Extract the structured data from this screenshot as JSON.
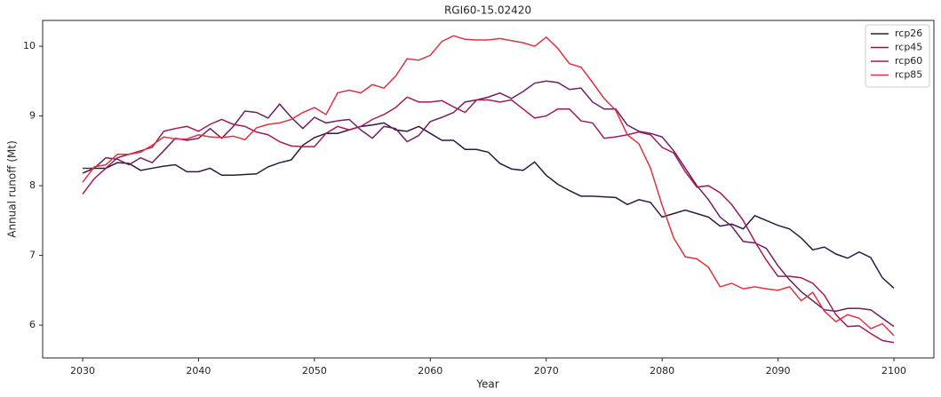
{
  "chart_data": {
    "type": "line",
    "title": "RGI60-15.02420",
    "xlabel": "Year",
    "ylabel": "Annual runoff (Mt)",
    "x": [
      2030,
      2031,
      2032,
      2033,
      2034,
      2035,
      2036,
      2037,
      2038,
      2039,
      2040,
      2041,
      2042,
      2043,
      2044,
      2045,
      2046,
      2047,
      2048,
      2049,
      2050,
      2051,
      2052,
      2053,
      2054,
      2055,
      2056,
      2057,
      2058,
      2059,
      2060,
      2061,
      2062,
      2063,
      2064,
      2065,
      2066,
      2067,
      2068,
      2069,
      2070,
      2071,
      2072,
      2073,
      2074,
      2075,
      2076,
      2077,
      2078,
      2079,
      2080,
      2081,
      2082,
      2083,
      2084,
      2085,
      2086,
      2087,
      2088,
      2089,
      2090,
      2091,
      2092,
      2093,
      2094,
      2095,
      2096,
      2097,
      2098,
      2099,
      2100
    ],
    "series": [
      {
        "name": "rcp26",
        "color": "#2e1a3f",
        "values": [
          8.18,
          8.25,
          8.25,
          8.33,
          8.32,
          8.22,
          8.25,
          8.28,
          8.3,
          8.2,
          8.2,
          8.25,
          8.15,
          8.15,
          8.16,
          8.17,
          8.27,
          8.33,
          8.37,
          8.58,
          8.69,
          8.75,
          8.75,
          8.8,
          8.85,
          8.87,
          8.9,
          8.8,
          8.78,
          8.85,
          8.75,
          8.65,
          8.65,
          8.52,
          8.52,
          8.48,
          8.32,
          8.24,
          8.22,
          8.34,
          8.15,
          8.02,
          7.93,
          7.85,
          7.85,
          7.84,
          7.83,
          7.73,
          7.8,
          7.76,
          7.55,
          7.6,
          7.65,
          7.6,
          7.55,
          7.42,
          7.45,
          7.38,
          7.57,
          7.5,
          7.43,
          7.38,
          7.25,
          7.08,
          7.12,
          7.02,
          6.96,
          7.05,
          6.97,
          6.68,
          6.53
        ]
      },
      {
        "name": "rcp45",
        "color": "#6e1f5c",
        "values": [
          8.25,
          8.25,
          8.4,
          8.38,
          8.3,
          8.4,
          8.33,
          8.5,
          8.68,
          8.65,
          8.68,
          8.82,
          8.68,
          8.85,
          9.07,
          9.05,
          8.97,
          9.17,
          8.98,
          8.82,
          8.98,
          8.9,
          8.93,
          8.95,
          8.8,
          8.68,
          8.85,
          8.82,
          8.63,
          8.72,
          8.92,
          8.98,
          9.05,
          9.2,
          9.23,
          9.27,
          9.33,
          9.25,
          9.35,
          9.47,
          9.5,
          9.48,
          9.38,
          9.4,
          9.2,
          9.1,
          9.1,
          8.87,
          8.78,
          8.75,
          8.7,
          8.5,
          8.25,
          8.0,
          7.8,
          7.55,
          7.42,
          7.2,
          7.18,
          7.1,
          6.85,
          6.65,
          6.48,
          6.35,
          6.22,
          6.2,
          6.24,
          6.24,
          6.22,
          6.1,
          5.98
        ]
      },
      {
        "name": "rcp60",
        "color": "#a11a5b",
        "values": [
          7.88,
          8.1,
          8.25,
          8.4,
          8.45,
          8.5,
          8.55,
          8.78,
          8.82,
          8.85,
          8.78,
          8.88,
          8.95,
          8.88,
          8.85,
          8.77,
          8.73,
          8.63,
          8.57,
          8.56,
          8.56,
          8.75,
          8.85,
          8.8,
          8.85,
          8.95,
          9.02,
          9.12,
          9.27,
          9.2,
          9.2,
          9.22,
          9.13,
          9.05,
          9.23,
          9.23,
          9.2,
          9.23,
          9.1,
          8.97,
          9.0,
          9.1,
          9.1,
          8.93,
          8.9,
          8.68,
          8.7,
          8.73,
          8.77,
          8.73,
          8.55,
          8.47,
          8.2,
          7.98,
          8.0,
          7.9,
          7.73,
          7.5,
          7.2,
          6.93,
          6.7,
          6.7,
          6.68,
          6.6,
          6.43,
          6.15,
          5.98,
          5.99,
          5.88,
          5.78,
          5.75
        ]
      },
      {
        "name": "rcp85",
        "color": "#e0323f",
        "values": [
          8.05,
          8.27,
          8.3,
          8.45,
          8.45,
          8.48,
          8.58,
          8.7,
          8.67,
          8.67,
          8.73,
          8.7,
          8.69,
          8.71,
          8.66,
          8.83,
          8.88,
          8.9,
          8.95,
          9.05,
          9.12,
          9.02,
          9.33,
          9.37,
          9.33,
          9.45,
          9.4,
          9.57,
          9.82,
          9.8,
          9.87,
          10.07,
          10.15,
          10.1,
          10.09,
          10.09,
          10.11,
          10.08,
          10.05,
          10.0,
          10.13,
          9.97,
          9.75,
          9.7,
          9.48,
          9.25,
          9.08,
          8.73,
          8.6,
          8.25,
          7.72,
          7.25,
          6.98,
          6.95,
          6.83,
          6.55,
          6.6,
          6.52,
          6.55,
          6.52,
          6.5,
          6.55,
          6.35,
          6.47,
          6.2,
          6.05,
          6.15,
          6.1,
          5.95,
          6.02,
          5.85
        ]
      }
    ],
    "xlim": [
      2026.55,
      2103.45
    ],
    "xticks": [
      2030,
      2040,
      2050,
      2060,
      2070,
      2080,
      2090,
      2100
    ],
    "ylim": [
      5.53,
      10.37
    ],
    "yticks": [
      6,
      7,
      8,
      9,
      10
    ],
    "legend": "upper right"
  }
}
